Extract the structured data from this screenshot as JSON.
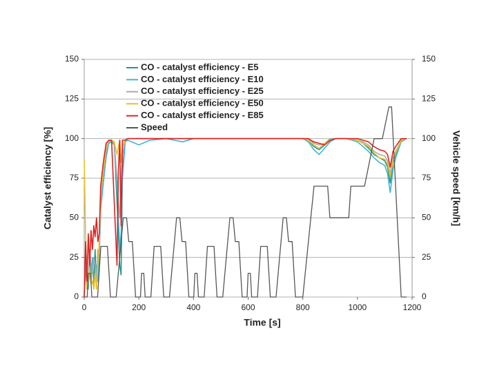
{
  "chart_data": {
    "type": "line",
    "xlabel": "Time [s]",
    "ylabel": "Catalyst efficiency [%]",
    "y2label": "Vehicle speed [km/h]",
    "xlim": [
      0,
      1200
    ],
    "xticks": [
      0,
      200,
      400,
      600,
      800,
      1000,
      1200
    ],
    "ylim": [
      0,
      150
    ],
    "yticks": [
      0,
      25,
      50,
      75,
      100,
      125,
      150
    ],
    "y2lim": [
      0,
      150
    ],
    "y2ticks": [
      0,
      25,
      50,
      75,
      100,
      125,
      150
    ],
    "grid": true,
    "legend": "upper left",
    "series": [
      {
        "name": "CO - catalyst efficiency - E5",
        "color": "#1a9a8a",
        "x": [
          0,
          5,
          10,
          15,
          20,
          25,
          30,
          35,
          40,
          45,
          50,
          55,
          60,
          70,
          80,
          90,
          100,
          110,
          120,
          125,
          130,
          135,
          140,
          150,
          160,
          200,
          240,
          300,
          360,
          400,
          500,
          600,
          700,
          800,
          820,
          840,
          860,
          880,
          900,
          920,
          960,
          1000,
          1020,
          1040,
          1060,
          1080,
          1100,
          1110,
          1120,
          1130,
          1140,
          1160,
          1180
        ],
        "values": [
          0,
          20,
          5,
          10,
          25,
          15,
          20,
          10,
          30,
          5,
          25,
          30,
          60,
          75,
          90,
          98,
          99,
          98,
          60,
          40,
          20,
          14,
          80,
          99,
          100,
          100,
          100,
          100,
          100,
          100,
          100,
          100,
          100,
          100,
          99,
          95,
          93,
          96,
          99,
          100,
          100,
          99,
          97,
          94,
          90,
          88,
          86,
          82,
          72,
          85,
          90,
          99,
          100
        ]
      },
      {
        "name": "CO - catalyst efficiency - E10",
        "color": "#3cb4d8",
        "x": [
          0,
          5,
          10,
          15,
          20,
          25,
          30,
          35,
          40,
          45,
          50,
          55,
          60,
          70,
          80,
          90,
          100,
          110,
          120,
          125,
          130,
          135,
          140,
          150,
          160,
          200,
          240,
          300,
          360,
          400,
          500,
          600,
          700,
          800,
          820,
          840,
          860,
          880,
          900,
          920,
          960,
          1000,
          1020,
          1040,
          1060,
          1080,
          1100,
          1110,
          1120,
          1130,
          1140,
          1160,
          1180
        ],
        "values": [
          0,
          30,
          10,
          5,
          20,
          10,
          25,
          5,
          15,
          20,
          10,
          25,
          55,
          72,
          88,
          97,
          98,
          96,
          70,
          50,
          30,
          40,
          75,
          98,
          99,
          96,
          99,
          100,
          98,
          100,
          100,
          100,
          100,
          100,
          98,
          93,
          90,
          94,
          98,
          100,
          100,
          98,
          95,
          92,
          88,
          85,
          83,
          78,
          66,
          80,
          88,
          98,
          100
        ]
      },
      {
        "name": "CO - catalyst efficiency - E25",
        "color": "#aaaaaa",
        "x": [
          0,
          5,
          10,
          15,
          20,
          25,
          30,
          35,
          40,
          45,
          50,
          55,
          60,
          70,
          80,
          90,
          100,
          110,
          120,
          125,
          130,
          135,
          140,
          150,
          160,
          200,
          240,
          300,
          360,
          400,
          500,
          600,
          700,
          800,
          820,
          840,
          860,
          880,
          900,
          920,
          960,
          1000,
          1020,
          1040,
          1060,
          1080,
          1100,
          1110,
          1120,
          1130,
          1140,
          1160,
          1180
        ],
        "values": [
          0,
          25,
          15,
          8,
          30,
          20,
          15,
          25,
          20,
          10,
          30,
          28,
          62,
          78,
          92,
          98,
          99,
          97,
          75,
          60,
          50,
          70,
          90,
          99,
          100,
          100,
          100,
          100,
          100,
          100,
          100,
          100,
          100,
          100,
          100,
          97,
          96,
          97,
          100,
          100,
          100,
          99,
          98,
          96,
          92,
          90,
          89,
          86,
          78,
          88,
          92,
          99,
          100
        ]
      },
      {
        "name": "CO - catalyst efficiency - E50",
        "color": "#f0c020",
        "x": [
          0,
          5,
          10,
          15,
          20,
          25,
          30,
          35,
          40,
          45,
          50,
          55,
          60,
          70,
          80,
          90,
          100,
          110,
          120,
          125,
          130,
          135,
          140,
          150,
          160,
          200,
          240,
          300,
          360,
          400,
          500,
          600,
          700,
          800,
          820,
          840,
          860,
          880,
          900,
          920,
          960,
          1000,
          1020,
          1040,
          1060,
          1080,
          1100,
          1110,
          1120,
          1130,
          1140,
          1160,
          1180
        ],
        "values": [
          87,
          40,
          5,
          12,
          18,
          8,
          10,
          5,
          15,
          5,
          20,
          35,
          65,
          80,
          95,
          99,
          99,
          98,
          90,
          95,
          99,
          85,
          95,
          99,
          100,
          100,
          100,
          100,
          100,
          100,
          100,
          100,
          100,
          100,
          99,
          96,
          94,
          97,
          99,
          100,
          100,
          99,
          97,
          95,
          91,
          88,
          87,
          84,
          76,
          86,
          91,
          99,
          100
        ]
      },
      {
        "name": "CO - catalyst efficiency - E85",
        "color": "#e02020",
        "x": [
          0,
          5,
          10,
          15,
          20,
          25,
          30,
          35,
          40,
          45,
          50,
          55,
          60,
          70,
          80,
          90,
          100,
          110,
          120,
          125,
          130,
          135,
          140,
          150,
          160,
          200,
          240,
          300,
          360,
          400,
          500,
          600,
          700,
          800,
          820,
          840,
          860,
          880,
          900,
          920,
          960,
          1000,
          1020,
          1040,
          1060,
          1080,
          1100,
          1110,
          1120,
          1130,
          1140,
          1160,
          1180
        ],
        "values": [
          0,
          35,
          10,
          40,
          20,
          42,
          30,
          45,
          38,
          50,
          35,
          40,
          70,
          85,
          97,
          99,
          99,
          60,
          20,
          80,
          99,
          45,
          99,
          99,
          100,
          100,
          100,
          100,
          100,
          100,
          100,
          100,
          100,
          100,
          100,
          98,
          97,
          96,
          99,
          100,
          100,
          100,
          99,
          98,
          95,
          93,
          92,
          90,
          82,
          92,
          95,
          100,
          100
        ]
      },
      {
        "name": "Speed",
        "color": "#555555",
        "axis": "y2",
        "x": [
          0,
          11,
          15,
          23,
          28,
          49,
          61,
          85,
          96,
          117,
          143,
          155,
          163,
          176,
          188,
          195,
          206,
          210,
          218,
          223,
          244,
          256,
          280,
          291,
          312,
          338,
          350,
          358,
          371,
          383,
          390,
          401,
          405,
          413,
          418,
          439,
          451,
          475,
          486,
          507,
          533,
          545,
          553,
          566,
          578,
          585,
          596,
          600,
          608,
          613,
          634,
          646,
          670,
          681,
          702,
          728,
          740,
          748,
          761,
          773,
          800,
          841,
          891,
          899,
          968,
          976,
          1026,
          1061,
          1091,
          1115,
          1125,
          1160,
          1180
        ],
        "values": [
          0,
          0,
          15,
          15,
          0,
          0,
          32,
          32,
          0,
          0,
          50,
          50,
          35,
          35,
          0,
          0,
          0,
          15,
          15,
          0,
          0,
          32,
          32,
          0,
          0,
          50,
          50,
          35,
          35,
          0,
          0,
          0,
          15,
          15,
          0,
          0,
          32,
          32,
          0,
          0,
          50,
          50,
          35,
          35,
          0,
          0,
          0,
          15,
          15,
          0,
          0,
          32,
          32,
          0,
          0,
          50,
          50,
          35,
          35,
          0,
          0,
          70,
          70,
          50,
          50,
          70,
          70,
          100,
          100,
          120,
          120,
          0,
          0
        ]
      }
    ]
  }
}
